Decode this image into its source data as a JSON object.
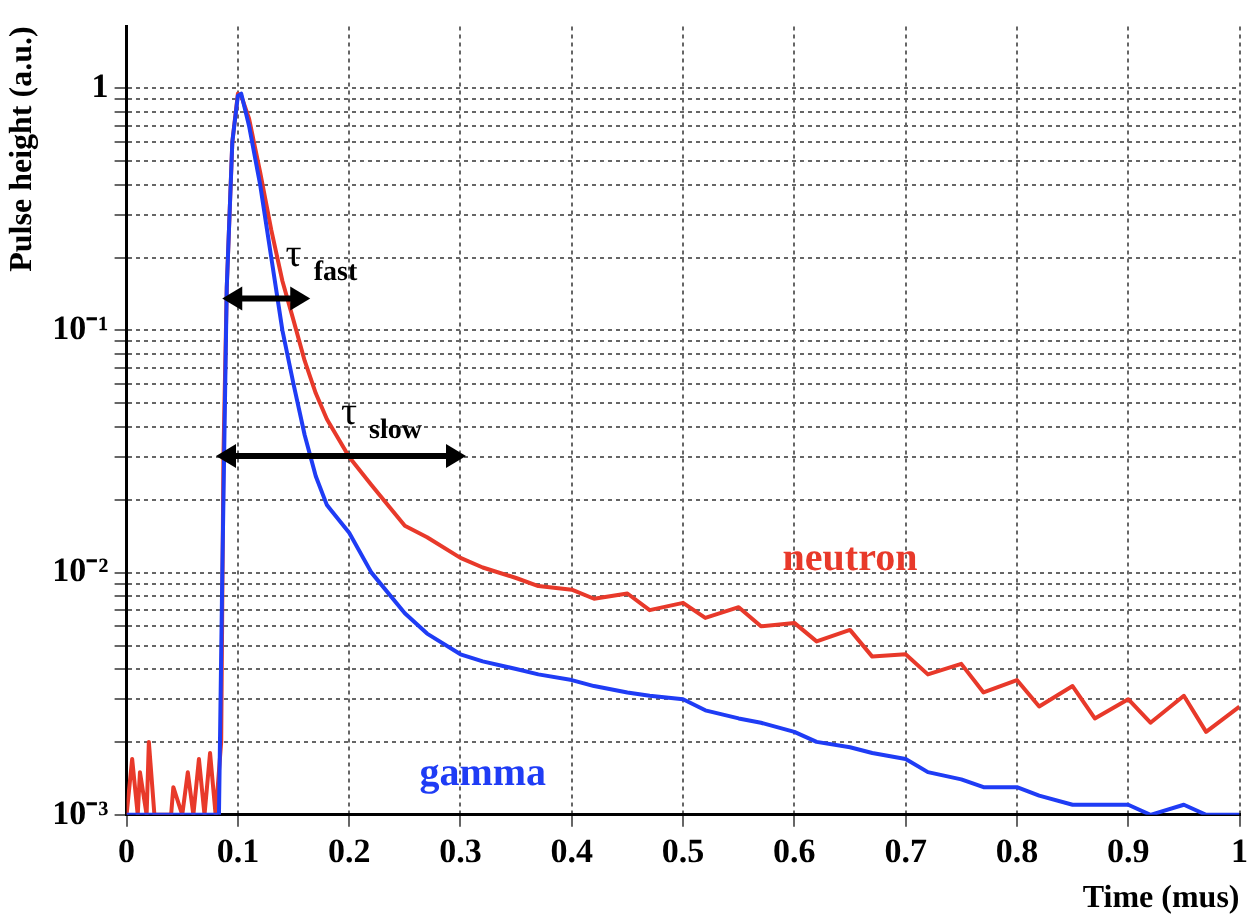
{
  "chart_data": {
    "type": "line",
    "xlabel": "Time (mus)",
    "ylabel": "Pulse height (a.u.)",
    "log": "y",
    "grid": true,
    "marker": "none",
    "line_style": "solid",
    "legend": false,
    "xlim": [
      0,
      1
    ],
    "xticks": [
      0,
      0.1,
      0.2,
      0.3,
      0.4,
      0.5,
      0.6,
      0.7,
      0.8,
      0.9,
      1
    ],
    "ylim": [
      0.001,
      1.8
    ],
    "yticks": [
      {
        "value": 0.001,
        "label": "10⁻³"
      },
      {
        "value": 0.002,
        "label": null
      },
      {
        "value": 0.003,
        "label": null
      },
      {
        "value": 0.004,
        "label": null
      },
      {
        "value": 0.005,
        "label": null
      },
      {
        "value": 0.006,
        "label": null
      },
      {
        "value": 0.007,
        "label": null
      },
      {
        "value": 0.008,
        "label": null
      },
      {
        "value": 0.009,
        "label": null
      },
      {
        "value": 0.01,
        "label": "10⁻²"
      },
      {
        "value": 0.02,
        "label": null
      },
      {
        "value": 0.03,
        "label": null
      },
      {
        "value": 0.04,
        "label": null
      },
      {
        "value": 0.05,
        "label": null
      },
      {
        "value": 0.06,
        "label": null
      },
      {
        "value": 0.07,
        "label": null
      },
      {
        "value": 0.08,
        "label": null
      },
      {
        "value": 0.09,
        "label": null
      },
      {
        "value": 0.1,
        "label": "10⁻¹"
      },
      {
        "value": 0.2,
        "label": null
      },
      {
        "value": 0.3,
        "label": null
      },
      {
        "value": 0.4,
        "label": null
      },
      {
        "value": 0.5,
        "label": null
      },
      {
        "value": 0.6,
        "label": null
      },
      {
        "value": 0.7,
        "label": null
      },
      {
        "value": 0.8,
        "label": null
      },
      {
        "value": 0.9,
        "label": null
      },
      {
        "value": 1,
        "label": "1"
      }
    ],
    "annotations": [
      "τ$_{fast}$",
      "τ$_{slow}$"
    ],
    "series": [
      {
        "name": "neutron",
        "color": "#e8392a",
        "x": [
          0,
          0.005,
          0.01,
          0.012,
          0.018,
          0.02,
          0.025,
          0.03,
          0.04,
          0.042,
          0.05,
          0.055,
          0.06,
          0.065,
          0.07,
          0.075,
          0.08,
          0.085,
          0.087,
          0.09,
          0.095,
          0.1,
          0.103,
          0.11,
          0.12,
          0.13,
          0.14,
          0.15,
          0.16,
          0.17,
          0.18,
          0.2,
          0.22,
          0.25,
          0.27,
          0.3,
          0.32,
          0.35,
          0.37,
          0.4,
          0.42,
          0.45,
          0.47,
          0.5,
          0.52,
          0.55,
          0.57,
          0.6,
          0.62,
          0.65,
          0.67,
          0.7,
          0.72,
          0.75,
          0.77,
          0.8,
          0.82,
          0.85,
          0.87,
          0.9,
          0.92,
          0.95,
          0.97,
          1
        ],
        "values": [
          0.001,
          0.0017,
          0.001,
          0.0015,
          0.001,
          0.002,
          0.001,
          0.001,
          0.001,
          0.0013,
          0.001,
          0.0015,
          0.001,
          0.0017,
          0.001,
          0.0018,
          0.001,
          0.002,
          0.03,
          0.15,
          0.6,
          0.95,
          0.93,
          0.75,
          0.45,
          0.26,
          0.16,
          0.11,
          0.075,
          0.055,
          0.043,
          0.03,
          0.023,
          0.0156,
          0.014,
          0.0115,
          0.0105,
          0.0095,
          0.0088,
          0.0085,
          0.0078,
          0.0082,
          0.007,
          0.0075,
          0.0065,
          0.0072,
          0.006,
          0.0062,
          0.0052,
          0.0058,
          0.0045,
          0.0046,
          0.0038,
          0.0042,
          0.0032,
          0.0036,
          0.0028,
          0.0034,
          0.0025,
          0.003,
          0.0024,
          0.0031,
          0.0022,
          0.0028
        ]
      },
      {
        "name": "gamma",
        "color": "#1f3cf5",
        "x": [
          0,
          0.083,
          0.086,
          0.09,
          0.095,
          0.1,
          0.103,
          0.11,
          0.12,
          0.13,
          0.14,
          0.15,
          0.16,
          0.17,
          0.18,
          0.2,
          0.22,
          0.25,
          0.27,
          0.3,
          0.32,
          0.35,
          0.37,
          0.4,
          0.42,
          0.45,
          0.47,
          0.5,
          0.52,
          0.55,
          0.57,
          0.6,
          0.62,
          0.65,
          0.67,
          0.7,
          0.72,
          0.75,
          0.77,
          0.8,
          0.82,
          0.85,
          0.87,
          0.9,
          0.92,
          0.95,
          0.97,
          1
        ],
        "values": [
          0.001,
          0.001,
          0.01,
          0.15,
          0.6,
          0.93,
          0.95,
          0.7,
          0.4,
          0.2,
          0.1,
          0.06,
          0.037,
          0.025,
          0.019,
          0.0146,
          0.01,
          0.0068,
          0.0056,
          0.0046,
          0.0043,
          0.004,
          0.0038,
          0.0036,
          0.0034,
          0.0032,
          0.0031,
          0.003,
          0.0027,
          0.0025,
          0.0024,
          0.0022,
          0.002,
          0.0019,
          0.0018,
          0.0017,
          0.0015,
          0.0014,
          0.0013,
          0.0013,
          0.0012,
          0.0011,
          0.0011,
          0.0011,
          0.001,
          0.0011,
          0.001,
          0.001
        ]
      }
    ]
  }
}
